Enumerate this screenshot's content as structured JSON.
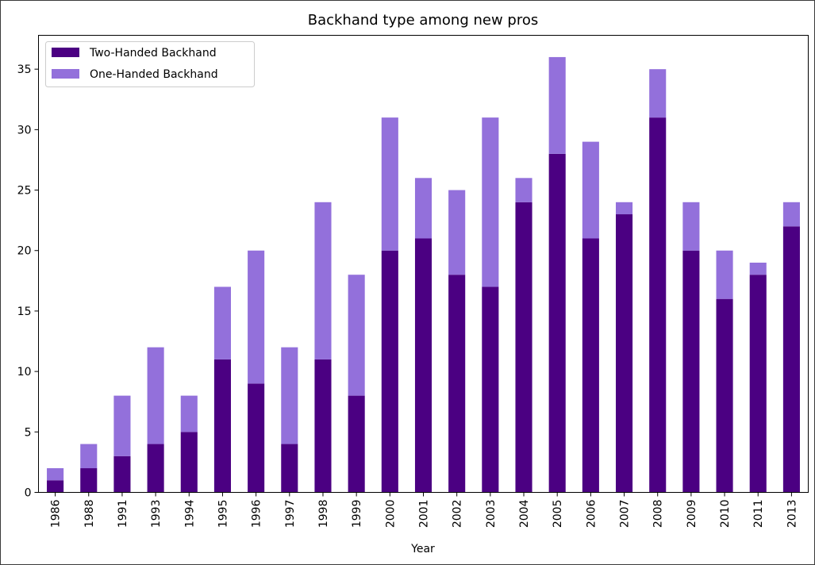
{
  "chart_data": {
    "type": "bar",
    "stacked": true,
    "title": "Backhand type among new pros",
    "xlabel": "Year",
    "ylabel": "",
    "ylim": [
      0,
      37.8
    ],
    "yticks": [
      0,
      5,
      10,
      15,
      20,
      25,
      30,
      35
    ],
    "grid": false,
    "legend_position": "top-left",
    "categories": [
      "1986",
      "1988",
      "1991",
      "1993",
      "1994",
      "1995",
      "1996",
      "1997",
      "1998",
      "1999",
      "2000",
      "2001",
      "2002",
      "2003",
      "2004",
      "2005",
      "2006",
      "2007",
      "2008",
      "2009",
      "2010",
      "2011",
      "2013"
    ],
    "series": [
      {
        "name": "Two-Handed Backhand",
        "color": "#4b0082",
        "values": [
          1,
          2,
          3,
          4,
          5,
          11,
          9,
          4,
          11,
          8,
          20,
          21,
          18,
          17,
          24,
          28,
          21,
          23,
          31,
          20,
          16,
          18,
          22
        ]
      },
      {
        "name": "One-Handed Backhand",
        "color": "#9370db",
        "values": [
          1,
          2,
          5,
          8,
          3,
          6,
          11,
          8,
          13,
          10,
          11,
          5,
          7,
          14,
          2,
          8,
          8,
          1,
          4,
          4,
          4,
          1,
          2
        ]
      }
    ]
  }
}
